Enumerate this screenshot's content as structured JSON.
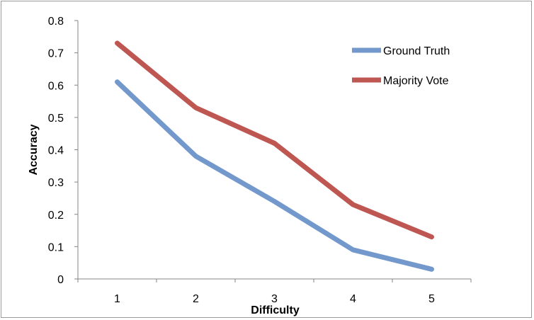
{
  "chart_data": {
    "type": "line",
    "title": "",
    "xlabel": "Difficulty",
    "ylabel": "Accuracy",
    "categories": [
      "1",
      "2",
      "3",
      "4",
      "5"
    ],
    "ylim": [
      0,
      0.8
    ],
    "yticks": [
      "0",
      "0.1",
      "0.2",
      "0.3",
      "0.4",
      "0.5",
      "0.6",
      "0.7",
      "0.8"
    ],
    "grid": false,
    "legend_position": "top-right",
    "series": [
      {
        "name": "Ground Truth",
        "color": "#7399CC",
        "values": [
          0.61,
          0.38,
          0.24,
          0.09,
          0.03
        ]
      },
      {
        "name": "Majority Vote",
        "color": "#BE5652",
        "values": [
          0.73,
          0.53,
          0.42,
          0.23,
          0.13
        ]
      }
    ]
  }
}
